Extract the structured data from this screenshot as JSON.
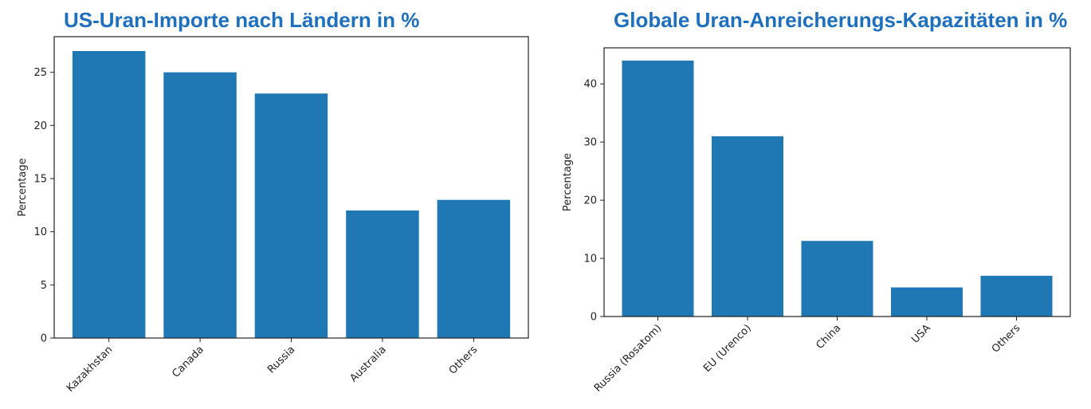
{
  "colors": {
    "bar": "#1F77B4",
    "title": "#1F6FBF",
    "axis": "#222222"
  },
  "chart_data": [
    {
      "type": "bar",
      "title": "US-Uran-Importe nach Ländern in %",
      "xlabel": "",
      "ylabel": "Percentage",
      "categories": [
        "Kazakhstan",
        "Canada",
        "Russia",
        "Australia",
        "Others"
      ],
      "values": [
        27,
        25,
        23,
        12,
        13
      ],
      "ylim": [
        0,
        28.35
      ],
      "yticks": [
        0,
        5,
        10,
        15,
        20,
        25
      ],
      "grid": false
    },
    {
      "type": "bar",
      "title": "Globale Uran-Anreicherungs-Kapazitäten in %",
      "xlabel": "",
      "ylabel": "Percentage",
      "categories": [
        "Russia (Rosatom)",
        "EU (Urenco)",
        "China",
        "USA",
        "Others"
      ],
      "values": [
        44,
        31,
        13,
        5,
        7
      ],
      "ylim": [
        0,
        46.2
      ],
      "yticks": [
        0,
        10,
        20,
        30,
        40
      ],
      "grid": false
    }
  ]
}
